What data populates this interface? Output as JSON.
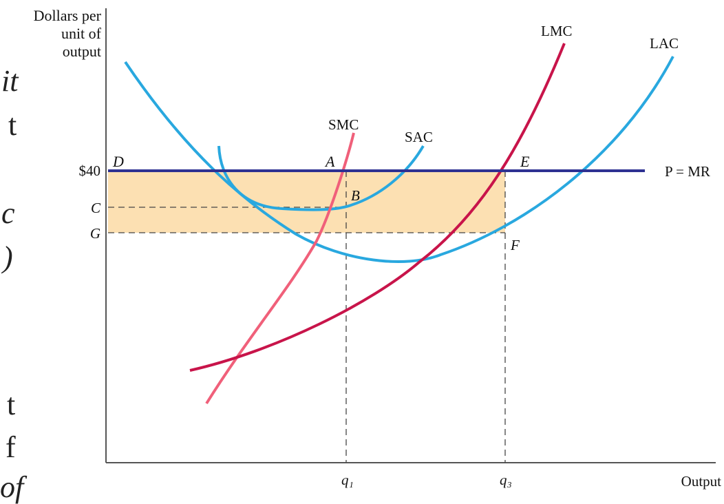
{
  "slide_fragments": {
    "f1": "it",
    "f2": "t",
    "f3": "c",
    "f4": ")",
    "f5": "t",
    "f6": "f",
    "f7": "of"
  },
  "y_axis_label_lines": [
    "Dollars per",
    "unit of",
    "output"
  ],
  "x_axis_label": "Output",
  "price_label": "$40",
  "y_tick_labels": {
    "c": "C",
    "g": "G"
  },
  "x_tick_labels": {
    "q1": "q₁",
    "q3": "q₃"
  },
  "points": {
    "d": "D",
    "a": "A",
    "e": "E",
    "b": "B",
    "f": "F"
  },
  "curves": {
    "smc": "SMC",
    "sac": "SAC",
    "lmc": "LMC",
    "lac": "LAC",
    "price_line": "P = MR"
  },
  "colors": {
    "sac": "#29a8df",
    "lac": "#29a8df",
    "lmc": "#c8144a",
    "smc": "#f0607a",
    "price_line": "#2e3192",
    "profit_area": "#fce0b2"
  }
}
